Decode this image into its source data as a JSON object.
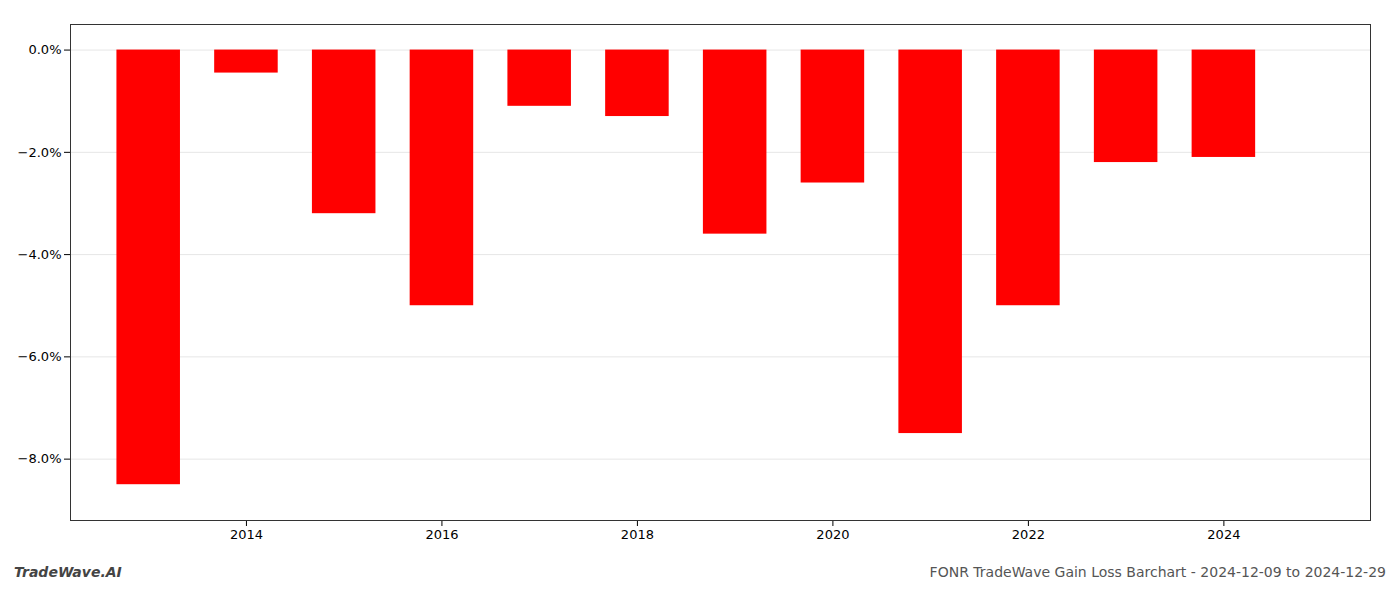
{
  "chart_data": {
    "type": "bar",
    "x": [
      2013,
      2014,
      2015,
      2016,
      2017,
      2018,
      2019,
      2020,
      2021,
      2022,
      2023,
      2024
    ],
    "values": [
      -8.5,
      -0.45,
      -3.2,
      -5.0,
      -1.1,
      -1.3,
      -3.6,
      -2.6,
      -7.5,
      -5.0,
      -2.2,
      -2.1
    ],
    "color": "#ff0000",
    "xlim": [
      2012.2,
      2025.5
    ],
    "xticks": [
      2014,
      2016,
      2018,
      2020,
      2022,
      2024
    ],
    "ylim": [
      -9.2,
      0.5
    ],
    "yticks": [
      {
        "value": 0.0,
        "label": "0.0%"
      },
      {
        "value": -2.0,
        "label": "−2.0%"
      },
      {
        "value": -4.0,
        "label": "−4.0%"
      },
      {
        "value": -6.0,
        "label": "−6.0%"
      },
      {
        "value": -8.0,
        "label": "−8.0%"
      }
    ],
    "grid": true,
    "annotations": [
      "TradeWave.AI",
      "FONR TradeWave Gain Loss Barchart - 2024-12-09 to 2024-12-29"
    ]
  }
}
